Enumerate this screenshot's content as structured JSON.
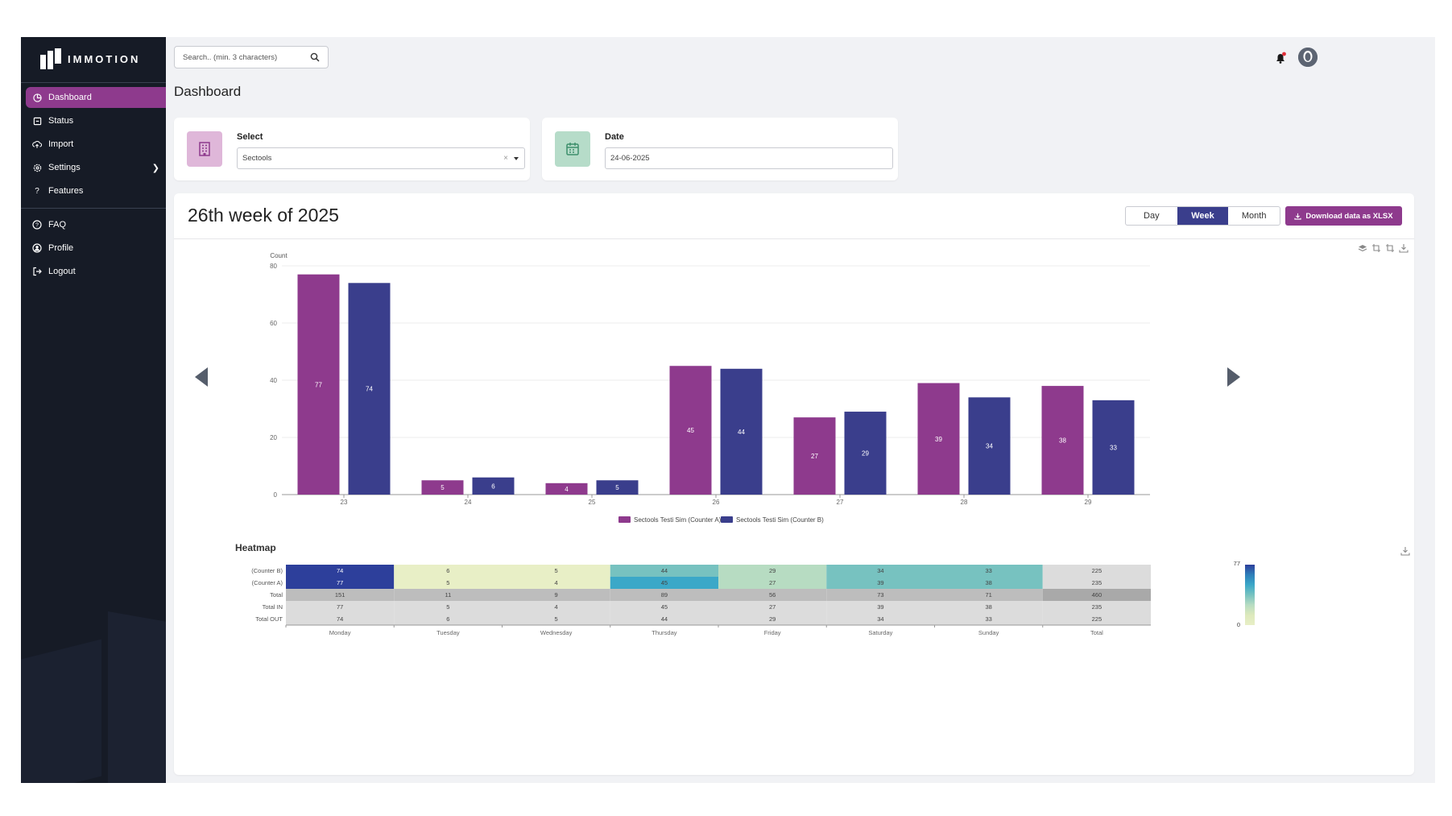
{
  "app": {
    "logo_text": "IMMOTION"
  },
  "sidebar": {
    "items": [
      {
        "label": "Dashboard",
        "icon": "dashboard-icon",
        "active": true
      },
      {
        "label": "Status",
        "icon": "status-icon"
      },
      {
        "label": "Import",
        "icon": "upload-cloud-icon"
      },
      {
        "label": "Settings",
        "icon": "gear-icon",
        "has_submenu": true
      },
      {
        "label": "Features",
        "icon": "question-icon"
      }
    ],
    "secondary_items": [
      {
        "label": "FAQ",
        "icon": "help-circle-icon"
      },
      {
        "label": "Profile",
        "icon": "user-circle-icon"
      },
      {
        "label": "Logout",
        "icon": "logout-icon"
      }
    ]
  },
  "topbar": {
    "search_placeholder": "Search.. (min. 3 characters)"
  },
  "page": {
    "title": "Dashboard"
  },
  "filters": {
    "select": {
      "label": "Select",
      "value": "Sectools"
    },
    "date": {
      "label": "Date",
      "value": "24-06-2025"
    }
  },
  "panel": {
    "title": "26th week of 2025",
    "periods": [
      "Day",
      "Week",
      "Month"
    ],
    "active_period": "Week",
    "download_label": "Download data as XLSX"
  },
  "colors": {
    "brand": "#8e3a8d",
    "counter_a": "#8e3a8d",
    "counter_b": "#3a3e8c",
    "sidebar": "#161b26"
  },
  "chart_data": [
    {
      "type": "bar",
      "ylabel": "Count",
      "ylim": [
        0,
        80
      ],
      "yticks": [
        0,
        20,
        40,
        60,
        80
      ],
      "categories": [
        "23",
        "24",
        "25",
        "26",
        "27",
        "28",
        "29"
      ],
      "series": [
        {
          "name": "Sectools Testi Sim (Counter A)",
          "values": [
            77,
            5,
            4,
            45,
            27,
            39,
            38
          ]
        },
        {
          "name": "Sectools Testi Sim (Counter B)",
          "values": [
            74,
            6,
            5,
            44,
            29,
            34,
            33
          ]
        }
      ],
      "legend": "bottom",
      "grid": true
    },
    {
      "type": "heatmap",
      "title": "Heatmap",
      "columns": [
        "Monday",
        "Tuesday",
        "Wednesday",
        "Thursday",
        "Friday",
        "Saturday",
        "Sunday",
        "Total"
      ],
      "rows": [
        {
          "label": "(Counter B)",
          "values": [
            74,
            6,
            5,
            44,
            29,
            34,
            33,
            225
          ]
        },
        {
          "label": "(Counter A)",
          "values": [
            77,
            5,
            4,
            45,
            27,
            39,
            38,
            235
          ]
        },
        {
          "label": "Total",
          "values": [
            151,
            11,
            9,
            89,
            56,
            73,
            71,
            460
          ]
        },
        {
          "label": "Total IN",
          "values": [
            77,
            5,
            4,
            45,
            27,
            39,
            38,
            235
          ]
        },
        {
          "label": "Total OUT",
          "values": [
            74,
            6,
            5,
            44,
            29,
            34,
            33,
            225
          ]
        }
      ],
      "scale": {
        "min": 0,
        "max": 77
      }
    }
  ]
}
